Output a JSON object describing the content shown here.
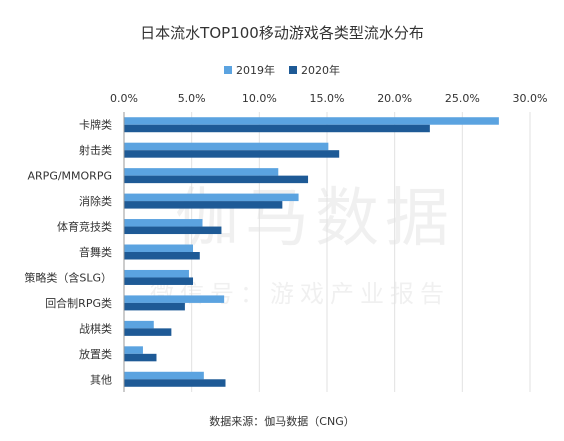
{
  "chart_data": {
    "type": "bar",
    "orientation": "horizontal",
    "title": "日本流水TOP100移动游戏各类型流水分布",
    "xlim": [
      0,
      30
    ],
    "x_ticks": [
      "0.0%",
      "5.0%",
      "10.0%",
      "15.0%",
      "20.0%",
      "25.0%",
      "30.0%"
    ],
    "x_tick_values": [
      0,
      5,
      10,
      15,
      20,
      25,
      30
    ],
    "legend_position": "top",
    "grid": true,
    "categories": [
      "卡牌类",
      "射击类",
      "ARPG/MMORPG",
      "消除类",
      "体育竞技类",
      "音舞类",
      "策略类（含SLG）",
      "回合制RPG类",
      "战棋类",
      "放置类",
      "其他"
    ],
    "series": [
      {
        "name": "2019年",
        "color": "#5ba3e0",
        "values": [
          27.7,
          15.1,
          11.4,
          12.9,
          5.8,
          5.1,
          4.8,
          7.4,
          2.2,
          1.4,
          5.9
        ]
      },
      {
        "name": "2020年",
        "color": "#1e5a96",
        "values": [
          22.6,
          15.9,
          13.6,
          11.7,
          7.2,
          5.6,
          5.1,
          4.5,
          3.5,
          2.4,
          7.5
        ]
      }
    ],
    "source": "数据来源：伽马数据（CNG）"
  },
  "watermark": {
    "main": "伽马数据",
    "sub": "微信号：游戏产业报告"
  }
}
